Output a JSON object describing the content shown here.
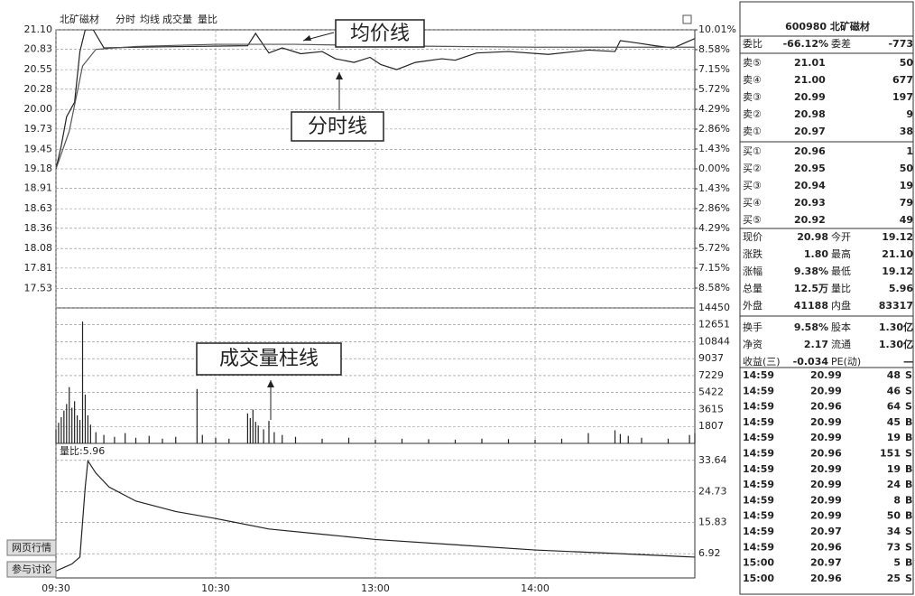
{
  "header": {
    "stock": "北矿磁材",
    "menu": [
      "分时",
      "均线",
      "成交量",
      "量比"
    ],
    "volume_ratio_label": "量比:5.96",
    "buttons": [
      "网页行情",
      "参与讨论"
    ]
  },
  "annotations": {
    "avg_line": "均价线",
    "price_line": "分时线",
    "volume_bars": "成交量柱线"
  },
  "chart_data": [
    {
      "type": "line",
      "name": "price",
      "xlim": [
        0,
        240
      ],
      "xticks": [
        {
          "value": 0,
          "label": "09:30"
        },
        {
          "value": 60,
          "label": "10:30"
        },
        {
          "value": 120,
          "label": "13:00"
        },
        {
          "value": 180,
          "label": "14:00"
        }
      ],
      "ylim": [
        17.26,
        21.1
      ],
      "yticks": [
        21.1,
        20.83,
        20.55,
        20.28,
        20.0,
        19.73,
        19.45,
        19.18,
        18.91,
        18.63,
        18.36,
        18.08,
        17.81,
        17.53
      ],
      "yticks_label": [
        "21.10",
        "20.83",
        "20.55",
        "20.28",
        "20.00",
        "19.73",
        "19.45",
        "19.18",
        "18.91",
        "18.63",
        "18.36",
        "18.08",
        "17.81",
        "17.53"
      ],
      "y2lim": [
        -10.01,
        10.01
      ],
      "y2ticks": [
        {
          "value": 10.01,
          "label": "10.01%"
        },
        {
          "value": 8.58,
          "label": "8.58%"
        },
        {
          "value": 7.15,
          "label": "7.15%"
        },
        {
          "value": 5.72,
          "label": "5.72%"
        },
        {
          "value": 4.29,
          "label": "4.29%"
        },
        {
          "value": 2.86,
          "label": "2.86%"
        },
        {
          "value": 1.43,
          "label": "1.43%"
        },
        {
          "value": 0,
          "label": "0.00%"
        },
        {
          "value": -1.43,
          "label": "1.43%"
        },
        {
          "value": -2.86,
          "label": "2.86%"
        },
        {
          "value": -4.29,
          "label": "4.29%"
        },
        {
          "value": -5.72,
          "label": "5.72%"
        },
        {
          "value": -7.15,
          "label": "7.15%"
        },
        {
          "value": -8.58,
          "label": "8.58%"
        }
      ],
      "grid": true,
      "series": [
        {
          "name": "分时线",
          "color": "#222222",
          "x": [
            0,
            2,
            4,
            7,
            9,
            11,
            14,
            18,
            30,
            50,
            72,
            75,
            80,
            85,
            92,
            100,
            105,
            112,
            118,
            122,
            128,
            135,
            145,
            150,
            158,
            170,
            185,
            200,
            210,
            212,
            218,
            225,
            232,
            240
          ],
          "values": [
            19.18,
            19.5,
            19.9,
            20.1,
            20.8,
            21.1,
            21.1,
            20.85,
            20.86,
            20.87,
            20.88,
            21.05,
            20.78,
            20.85,
            20.77,
            20.8,
            20.7,
            20.65,
            20.72,
            20.62,
            20.55,
            20.65,
            20.7,
            20.68,
            20.78,
            20.8,
            20.76,
            20.82,
            20.8,
            20.95,
            20.92,
            20.88,
            20.85,
            20.98
          ]
        },
        {
          "name": "均价线",
          "color": "#555555",
          "x": [
            0,
            5,
            10,
            15,
            30,
            60,
            90,
            120,
            180,
            240
          ],
          "values": [
            19.18,
            19.7,
            20.6,
            20.83,
            20.87,
            20.9,
            20.9,
            20.88,
            20.86,
            20.86
          ]
        }
      ]
    },
    {
      "type": "bar",
      "name": "volume",
      "xlim": [
        0,
        240
      ],
      "ylim": [
        0,
        14450
      ],
      "yticks": [
        14450,
        12651,
        10844,
        9037,
        7229,
        5422,
        3615,
        1807
      ],
      "grid": true,
      "color": "#222222",
      "x": [
        0,
        1,
        2,
        3,
        4,
        5,
        6,
        7,
        8,
        9,
        10,
        11,
        12,
        13,
        15,
        18,
        22,
        26,
        30,
        35,
        40,
        45,
        53,
        55,
        60,
        65,
        72,
        73,
        74,
        75,
        76,
        78,
        80,
        82,
        85,
        90,
        100,
        110,
        120,
        130,
        140,
        150,
        160,
        170,
        180,
        190,
        200,
        210,
        212,
        215,
        220,
        230,
        238,
        240
      ],
      "values": [
        1500,
        2200,
        2800,
        3500,
        4200,
        6000,
        3800,
        4500,
        3000,
        2500,
        13000,
        5200,
        3000,
        2000,
        1200,
        900,
        700,
        1100,
        600,
        800,
        500,
        700,
        5800,
        900,
        600,
        500,
        3200,
        2700,
        3600,
        2300,
        1900,
        1500,
        2400,
        1200,
        900,
        700,
        500,
        600,
        400,
        500,
        450,
        400,
        500,
        450,
        400,
        500,
        1100,
        1400,
        1000,
        800,
        600,
        500,
        900,
        1100
      ]
    },
    {
      "type": "line",
      "name": "ratio",
      "xlim": [
        0,
        240
      ],
      "ylim": [
        0,
        38.5
      ],
      "yticks": [
        33.64,
        24.73,
        15.83,
        6.92
      ],
      "grid": true,
      "color": "#222222",
      "x": [
        0,
        3,
        6,
        9,
        11,
        12,
        15,
        20,
        30,
        45,
        60,
        80,
        100,
        120,
        150,
        180,
        210,
        240
      ],
      "values": [
        2,
        3,
        4,
        6,
        26,
        33.5,
        30,
        26,
        22,
        19,
        17,
        14,
        12.5,
        11,
        9.5,
        8,
        7,
        5.96
      ]
    }
  ],
  "quote_panel": {
    "title": "600980 北矿磁材",
    "ratio": [
      "委比",
      "-66.12%",
      "委差",
      "-773"
    ],
    "sell": [
      [
        "卖⑤",
        "21.01",
        "50"
      ],
      [
        "卖④",
        "21.00",
        "677"
      ],
      [
        "卖③",
        "20.99",
        "197"
      ],
      [
        "卖②",
        "20.98",
        "9"
      ],
      [
        "卖①",
        "20.97",
        "38"
      ]
    ],
    "buy": [
      [
        "买①",
        "20.96",
        "1"
      ],
      [
        "买②",
        "20.95",
        "50"
      ],
      [
        "买③",
        "20.94",
        "19"
      ],
      [
        "买④",
        "20.93",
        "79"
      ],
      [
        "买⑤",
        "20.92",
        "49"
      ]
    ],
    "stats": [
      [
        "现价",
        "20.98",
        "今开",
        "19.12"
      ],
      [
        "涨跌",
        "1.80",
        "最高",
        "21.10"
      ],
      [
        "涨幅",
        "9.38%",
        "最低",
        "19.12"
      ],
      [
        "总量",
        "12.5万",
        "量比",
        "5.96"
      ],
      [
        "外盘",
        "41188",
        "内盘",
        "83317"
      ],
      [
        "换手",
        "9.58%",
        "股本",
        "1.30亿"
      ],
      [
        "净资",
        "2.17",
        "流通",
        "1.30亿"
      ],
      [
        "收益(三)",
        "-0.034",
        "PE(动)",
        "—"
      ]
    ],
    "trades": [
      [
        "14:59",
        "20.99",
        "48",
        "S"
      ],
      [
        "14:59",
        "20.99",
        "46",
        "S"
      ],
      [
        "14:59",
        "20.96",
        "64",
        "S"
      ],
      [
        "14:59",
        "20.99",
        "45",
        "B"
      ],
      [
        "14:59",
        "20.99",
        "19",
        "B"
      ],
      [
        "14:59",
        "20.96",
        "151",
        "S"
      ],
      [
        "14:59",
        "20.99",
        "19",
        "B"
      ],
      [
        "14:59",
        "20.99",
        "24",
        "B"
      ],
      [
        "14:59",
        "20.99",
        "8",
        "B"
      ],
      [
        "14:59",
        "20.99",
        "50",
        "B"
      ],
      [
        "14:59",
        "20.97",
        "34",
        "S"
      ],
      [
        "14:59",
        "20.96",
        "73",
        "S"
      ],
      [
        "15:00",
        "20.97",
        "5",
        "B"
      ],
      [
        "15:00",
        "20.96",
        "25",
        "S"
      ]
    ]
  }
}
